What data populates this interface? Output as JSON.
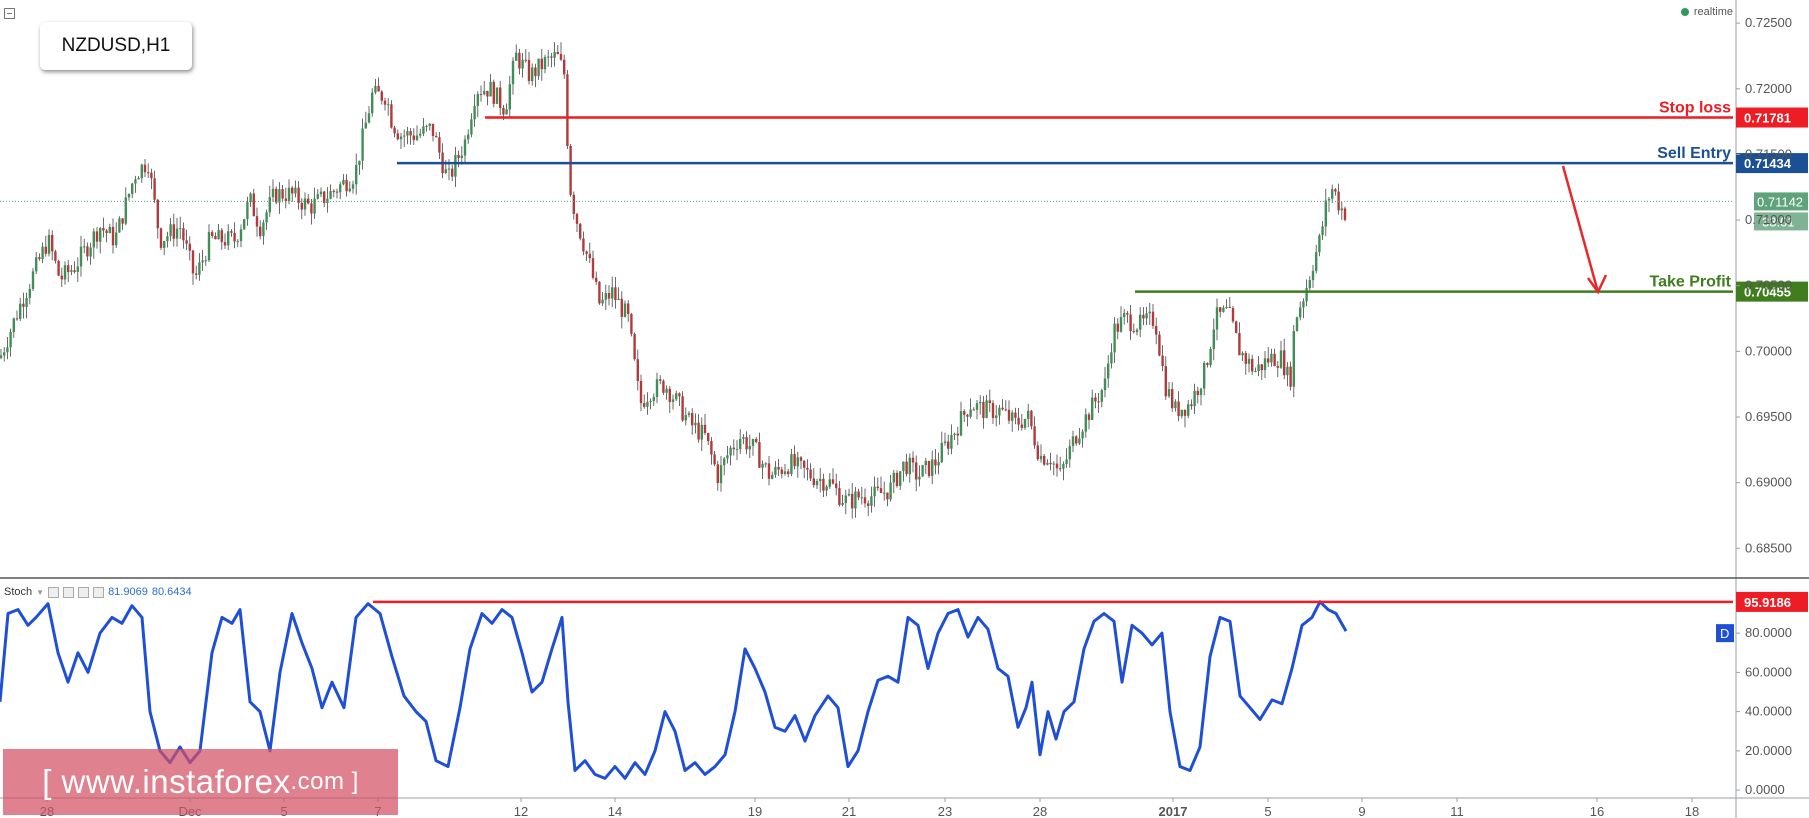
{
  "header": {
    "symbol": "NZDUSD,H1",
    "realtime_label": "realtime",
    "stoch_label": "Stoch",
    "stoch_values": [
      "81.9069",
      "80.6434"
    ]
  },
  "watermark": {
    "text": "[ www.instaforex",
    "suffix": ".com ]"
  },
  "colors": {
    "up_candle": "#3f8f56",
    "down_candle": "#b23a3a",
    "stoch_line": "#1f4fd6",
    "stop_loss": "#ee1c24",
    "sell_entry": "#1b4f96",
    "take_profit": "#3f7d1e",
    "arrow": "#e8282b",
    "current_price": "#5ea37a"
  },
  "icons": [
    "collapse-icon",
    "realtime-dot-icon",
    "settings-icon",
    "add-icon",
    "close-icon",
    "down-arrow-icon"
  ],
  "chart_data": [
    {
      "type": "candlestick",
      "title": "NZDUSD,H1",
      "x_tick_labels": [
        "28",
        "Dec",
        "5",
        "7",
        "12",
        "14",
        "19",
        "21",
        "23",
        "28",
        "2017",
        "5",
        "9",
        "11",
        "16",
        "18"
      ],
      "y_tick_labels": [
        "0.72500",
        "0.72000",
        "0.71500",
        "0.71000",
        "0.70500",
        "0.70000",
        "0.69500",
        "0.69000",
        "0.68500"
      ],
      "ylim": [
        0.6835,
        0.726
      ],
      "close_path": [
        [
          0,
          0.6995
        ],
        [
          20,
          0.7035
        ],
        [
          48,
          0.7085
        ],
        [
          60,
          0.7055
        ],
        [
          75,
          0.7065
        ],
        [
          100,
          0.7095
        ],
        [
          115,
          0.7085
        ],
        [
          135,
          0.7135
        ],
        [
          148,
          0.7145
        ],
        [
          160,
          0.7085
        ],
        [
          180,
          0.7095
        ],
        [
          195,
          0.7055
        ],
        [
          210,
          0.7085
        ],
        [
          235,
          0.7085
        ],
        [
          250,
          0.7115
        ],
        [
          260,
          0.7095
        ],
        [
          275,
          0.712
        ],
        [
          290,
          0.712
        ],
        [
          310,
          0.711
        ],
        [
          330,
          0.712
        ],
        [
          355,
          0.7135
        ],
        [
          372,
          0.7195
        ],
        [
          386,
          0.7195
        ],
        [
          392,
          0.7175
        ],
        [
          400,
          0.7165
        ],
        [
          418,
          0.7165
        ],
        [
          432,
          0.717
        ],
        [
          448,
          0.713
        ],
        [
          465,
          0.716
        ],
        [
          476,
          0.72
        ],
        [
          490,
          0.72
        ],
        [
          505,
          0.7185
        ],
        [
          516,
          0.7225
        ],
        [
          530,
          0.721
        ],
        [
          545,
          0.722
        ],
        [
          557,
          0.7225
        ],
        [
          565,
          0.721
        ],
        [
          569,
          0.713
        ],
        [
          575,
          0.7105
        ],
        [
          590,
          0.7065
        ],
        [
          600,
          0.7035
        ],
        [
          612,
          0.7045
        ],
        [
          628,
          0.7025
        ],
        [
          640,
          0.696
        ],
        [
          650,
          0.697
        ],
        [
          665,
          0.6975
        ],
        [
          678,
          0.696
        ],
        [
          690,
          0.6945
        ],
        [
          705,
          0.6935
        ],
        [
          718,
          0.6905
        ],
        [
          730,
          0.6925
        ],
        [
          740,
          0.6935
        ],
        [
          755,
          0.6925
        ],
        [
          770,
          0.6905
        ],
        [
          790,
          0.6915
        ],
        [
          812,
          0.6905
        ],
        [
          830,
          0.69
        ],
        [
          840,
          0.689
        ],
        [
          848,
          0.6885
        ],
        [
          860,
          0.689
        ],
        [
          875,
          0.689
        ],
        [
          890,
          0.6895
        ],
        [
          905,
          0.6915
        ],
        [
          918,
          0.6905
        ],
        [
          935,
          0.6915
        ],
        [
          955,
          0.694
        ],
        [
          970,
          0.696
        ],
        [
          985,
          0.6955
        ],
        [
          1000,
          0.6955
        ],
        [
          1015,
          0.6945
        ],
        [
          1028,
          0.695
        ],
        [
          1040,
          0.692
        ],
        [
          1050,
          0.692
        ],
        [
          1060,
          0.6905
        ],
        [
          1075,
          0.6935
        ],
        [
          1090,
          0.6955
        ],
        [
          1105,
          0.6975
        ],
        [
          1113,
          0.7015
        ],
        [
          1125,
          0.7025
        ],
        [
          1140,
          0.702
        ],
        [
          1155,
          0.7025
        ],
        [
          1165,
          0.6975
        ],
        [
          1175,
          0.6955
        ],
        [
          1190,
          0.696
        ],
        [
          1205,
          0.6985
        ],
        [
          1215,
          0.7025
        ],
        [
          1228,
          0.703
        ],
        [
          1240,
          0.7
        ],
        [
          1255,
          0.6985
        ],
        [
          1270,
          0.6995
        ],
        [
          1282,
          0.6995
        ],
        [
          1290,
          0.6975
        ],
        [
          1295,
          0.7025
        ],
        [
          1305,
          0.7045
        ],
        [
          1312,
          0.7065
        ],
        [
          1320,
          0.7085
        ],
        [
          1327,
          0.7115
        ],
        [
          1333,
          0.7125
        ],
        [
          1340,
          0.711
        ],
        [
          1346,
          0.7105
        ]
      ],
      "annotations": [
        {
          "label": "Stop loss",
          "value": 0.71781,
          "value_text": "0.71781",
          "x_start": 485
        },
        {
          "label": "Sell Entry",
          "value": 0.71434,
          "value_text": "0.71434",
          "x_start": 397
        },
        {
          "label": "Take Profit",
          "value": 0.70455,
          "value_text": "0.70455",
          "x_start": 1135
        }
      ],
      "current_price": {
        "value": 0.71142,
        "value_text": "0.71142",
        "countdown": "33:01"
      }
    },
    {
      "type": "line",
      "title": "Stoch",
      "y_tick_labels": [
        "80.0000",
        "60.0000",
        "40.0000",
        "20.0000",
        "0.0000"
      ],
      "ylim": [
        -3,
        103
      ],
      "series": [
        {
          "name": "Stoch",
          "points": [
            [
              0,
              45
            ],
            [
              8,
              90
            ],
            [
              18,
              92
            ],
            [
              28,
              84
            ],
            [
              36,
              88
            ],
            [
              48,
              95
            ],
            [
              58,
              70
            ],
            [
              68,
              55
            ],
            [
              78,
              70
            ],
            [
              88,
              60
            ],
            [
              100,
              80
            ],
            [
              112,
              88
            ],
            [
              122,
              85
            ],
            [
              132,
              94
            ],
            [
              142,
              88
            ],
            [
              150,
              40
            ],
            [
              160,
              20
            ],
            [
              170,
              14
            ],
            [
              180,
              22
            ],
            [
              190,
              14
            ],
            [
              200,
              20
            ],
            [
              212,
              70
            ],
            [
              222,
              88
            ],
            [
              232,
              85
            ],
            [
              240,
              92
            ],
            [
              250,
              45
            ],
            [
              260,
              40
            ],
            [
              270,
              20
            ],
            [
              280,
              60
            ],
            [
              292,
              90
            ],
            [
              302,
              75
            ],
            [
              312,
              62
            ],
            [
              322,
              42
            ],
            [
              332,
              55
            ],
            [
              344,
              42
            ],
            [
              356,
              88
            ],
            [
              368,
              95
            ],
            [
              380,
              90
            ],
            [
              392,
              68
            ],
            [
              404,
              48
            ],
            [
              416,
              40
            ],
            [
              426,
              35
            ],
            [
              436,
              15
            ],
            [
              448,
              12
            ],
            [
              460,
              42
            ],
            [
              470,
              72
            ],
            [
              482,
              90
            ],
            [
              492,
              85
            ],
            [
              502,
              92
            ],
            [
              512,
              88
            ],
            [
              522,
              70
            ],
            [
              532,
              50
            ],
            [
              542,
              55
            ],
            [
              552,
              72
            ],
            [
              562,
              88
            ],
            [
              568,
              45
            ],
            [
              575,
              10
            ],
            [
              585,
              15
            ],
            [
              595,
              8
            ],
            [
              605,
              6
            ],
            [
              615,
              12
            ],
            [
              625,
              6
            ],
            [
              635,
              14
            ],
            [
              645,
              8
            ],
            [
              655,
              20
            ],
            [
              665,
              40
            ],
            [
              675,
              30
            ],
            [
              685,
              10
            ],
            [
              695,
              14
            ],
            [
              705,
              8
            ],
            [
              715,
              12
            ],
            [
              725,
              18
            ],
            [
              735,
              40
            ],
            [
              745,
              72
            ],
            [
              755,
              62
            ],
            [
              765,
              50
            ],
            [
              775,
              32
            ],
            [
              785,
              30
            ],
            [
              795,
              38
            ],
            [
              805,
              25
            ],
            [
              815,
              38
            ],
            [
              828,
              48
            ],
            [
              838,
              42
            ],
            [
              848,
              12
            ],
            [
              858,
              20
            ],
            [
              868,
              40
            ],
            [
              878,
              56
            ],
            [
              888,
              58
            ],
            [
              898,
              55
            ],
            [
              908,
              88
            ],
            [
              918,
              84
            ],
            [
              928,
              62
            ],
            [
              938,
              80
            ],
            [
              948,
              90
            ],
            [
              958,
              92
            ],
            [
              968,
              78
            ],
            [
              978,
              88
            ],
            [
              988,
              82
            ],
            [
              998,
              62
            ],
            [
              1008,
              58
            ],
            [
              1018,
              32
            ],
            [
              1026,
              42
            ],
            [
              1032,
              55
            ],
            [
              1040,
              18
            ],
            [
              1048,
              40
            ],
            [
              1056,
              26
            ],
            [
              1064,
              40
            ],
            [
              1074,
              45
            ],
            [
              1084,
              72
            ],
            [
              1094,
              86
            ],
            [
              1104,
              90
            ],
            [
              1114,
              86
            ],
            [
              1122,
              55
            ],
            [
              1132,
              84
            ],
            [
              1142,
              80
            ],
            [
              1152,
              74
            ],
            [
              1162,
              80
            ],
            [
              1170,
              40
            ],
            [
              1180,
              12
            ],
            [
              1190,
              10
            ],
            [
              1200,
              22
            ],
            [
              1210,
              68
            ],
            [
              1220,
              88
            ],
            [
              1230,
              86
            ],
            [
              1240,
              48
            ],
            [
              1250,
              42
            ],
            [
              1260,
              36
            ],
            [
              1272,
              46
            ],
            [
              1282,
              44
            ],
            [
              1292,
              62
            ],
            [
              1302,
              84
            ],
            [
              1312,
              88
            ],
            [
              1320,
              96
            ],
            [
              1328,
              92
            ],
            [
              1336,
              90
            ],
            [
              1346,
              81
            ]
          ]
        }
      ],
      "annotations": [
        {
          "value": 95.9186,
          "value_text": "95.9186",
          "x_start": 373
        }
      ],
      "legend_badge": "D"
    }
  ]
}
